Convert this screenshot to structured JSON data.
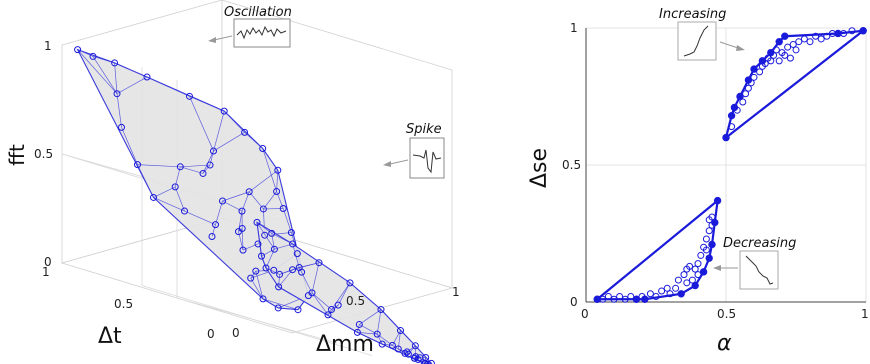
{
  "chart_data": [
    {
      "type": "scatter",
      "projection": "3d",
      "xlabel": "Δt",
      "ylabel": "Δmm",
      "zlabel": "fft",
      "x_ticks": [
        "0",
        "0.5",
        "1"
      ],
      "y_ticks": [
        "0",
        "0.5",
        "1"
      ],
      "z_ticks": [
        "0",
        "0.5",
        "1"
      ],
      "grid": true,
      "colors": {
        "points": "#1a1adb",
        "hull": "#3b3bdd",
        "hull_fill": "#e3e3e3",
        "axes": "#555555",
        "grid": "#d8d8d8"
      },
      "annotations": [
        "Oscillation",
        "Spike"
      ],
      "series": [
        {
          "clusters": "oscillation",
          "points": [
            [
              0.96,
              0.04,
              1.0
            ],
            [
              0.95,
              0.1,
              0.99
            ],
            [
              0.93,
              0.18,
              0.99
            ],
            [
              0.9,
              0.3,
              0.97
            ],
            [
              0.85,
              0.45,
              0.94
            ],
            [
              0.82,
              0.58,
              0.92
            ],
            [
              0.75,
              0.62,
              0.85
            ],
            [
              0.68,
              0.65,
              0.8
            ],
            [
              0.6,
              0.66,
              0.72
            ],
            [
              0.55,
              0.62,
              0.62
            ],
            [
              0.48,
              0.6,
              0.55
            ],
            [
              0.4,
              0.58,
              0.45
            ],
            [
              0.32,
              0.55,
              0.36
            ],
            [
              0.25,
              0.52,
              0.28
            ],
            [
              0.15,
              0.48,
              0.18
            ],
            [
              0.1,
              0.4,
              0.1
            ],
            [
              0.08,
              0.3,
              0.08
            ],
            [
              0.06,
              0.22,
              0.1
            ],
            [
              0.7,
              0.05,
              0.7
            ],
            [
              0.6,
              0.05,
              0.55
            ],
            [
              0.5,
              0.05,
              0.42
            ],
            [
              0.8,
              0.1,
              0.85
            ],
            [
              0.55,
              0.3,
              0.6
            ],
            [
              0.5,
              0.35,
              0.5
            ],
            [
              0.45,
              0.4,
              0.48
            ],
            [
              0.42,
              0.38,
              0.4
            ],
            [
              0.4,
              0.35,
              0.38
            ],
            [
              0.35,
              0.4,
              0.35
            ],
            [
              0.38,
              0.45,
              0.4
            ],
            [
              0.3,
              0.3,
              0.3
            ],
            [
              0.62,
              0.25,
              0.6
            ],
            [
              0.58,
              0.2,
              0.5
            ],
            [
              0.65,
              0.4,
              0.65
            ],
            [
              0.7,
              0.45,
              0.72
            ],
            [
              0.28,
              0.42,
              0.25
            ],
            [
              0.22,
              0.3,
              0.22
            ],
            [
              0.18,
              0.25,
              0.18
            ],
            [
              0.35,
              0.2,
              0.32
            ],
            [
              0.45,
              0.15,
              0.4
            ],
            [
              0.52,
              0.48,
              0.58
            ],
            [
              0.46,
              0.5,
              0.52
            ],
            [
              0.4,
              0.25,
              0.38
            ]
          ]
        },
        {
          "clusters": "spike",
          "points": [
            [
              0.5,
              0.5,
              0.45
            ],
            [
              0.48,
              0.55,
              0.42
            ],
            [
              0.45,
              0.62,
              0.4
            ],
            [
              0.4,
              0.7,
              0.35
            ],
            [
              0.35,
              0.8,
              0.3
            ],
            [
              0.3,
              0.9,
              0.22
            ],
            [
              0.25,
              0.95,
              0.15
            ],
            [
              0.2,
              0.98,
              0.1
            ],
            [
              0.15,
              0.99,
              0.06
            ],
            [
              0.1,
              0.98,
              0.04
            ],
            [
              0.08,
              0.95,
              0.03
            ],
            [
              0.3,
              0.4,
              0.25
            ],
            [
              0.25,
              0.42,
              0.18
            ],
            [
              0.4,
              0.45,
              0.3
            ],
            [
              0.35,
              0.55,
              0.28
            ],
            [
              0.3,
              0.6,
              0.2
            ],
            [
              0.28,
              0.7,
              0.18
            ],
            [
              0.22,
              0.75,
              0.12
            ],
            [
              0.18,
              0.8,
              0.1
            ],
            [
              0.12,
              0.85,
              0.06
            ],
            [
              0.15,
              0.9,
              0.05
            ],
            [
              0.12,
              0.92,
              0.04
            ],
            [
              0.1,
              0.93,
              0.05
            ],
            [
              0.14,
              0.95,
              0.04
            ],
            [
              0.18,
              0.93,
              0.06
            ],
            [
              0.2,
              0.88,
              0.07
            ],
            [
              0.25,
              0.65,
              0.15
            ],
            [
              0.38,
              0.6,
              0.3
            ],
            [
              0.33,
              0.48,
              0.24
            ],
            [
              0.42,
              0.52,
              0.35
            ],
            [
              0.2,
              0.6,
              0.12
            ],
            [
              0.16,
              0.7,
              0.08
            ],
            [
              0.12,
              0.78,
              0.06
            ],
            [
              0.1,
              0.88,
              0.05
            ],
            [
              0.09,
              0.9,
              0.04
            ],
            [
              0.11,
              0.96,
              0.03
            ],
            [
              0.13,
              0.97,
              0.03
            ],
            [
              0.17,
              0.96,
              0.05
            ]
          ]
        }
      ]
    },
    {
      "type": "scatter",
      "xlabel": "α",
      "ylabel": "Δse",
      "xlim": [
        0,
        1
      ],
      "ylim": [
        0,
        1
      ],
      "x_ticks": [
        "0",
        "0.5",
        "1"
      ],
      "y_ticks": [
        "0",
        "0.5",
        "1"
      ],
      "grid": true,
      "annotations": [
        "Increasing",
        "Decreasing"
      ],
      "series": [
        {
          "clusters": "increasing",
          "hull": [
            [
              0.5,
              0.6
            ],
            [
              0.52,
              0.68
            ],
            [
              0.53,
              0.71
            ],
            [
              0.55,
              0.75
            ],
            [
              0.58,
              0.81
            ],
            [
              0.6,
              0.85
            ],
            [
              0.63,
              0.88
            ],
            [
              0.66,
              0.91
            ],
            [
              0.69,
              0.95
            ],
            [
              0.71,
              0.97
            ],
            [
              0.9,
              0.98
            ],
            [
              0.99,
              0.99
            ]
          ],
          "points": [
            [
              0.52,
              0.64
            ],
            [
              0.54,
              0.7
            ],
            [
              0.56,
              0.73
            ],
            [
              0.57,
              0.76
            ],
            [
              0.58,
              0.78
            ],
            [
              0.59,
              0.8
            ],
            [
              0.6,
              0.82
            ],
            [
              0.62,
              0.84
            ],
            [
              0.64,
              0.87
            ],
            [
              0.66,
              0.88
            ],
            [
              0.67,
              0.9
            ],
            [
              0.68,
              0.92
            ],
            [
              0.7,
              0.91
            ],
            [
              0.72,
              0.93
            ],
            [
              0.74,
              0.94
            ],
            [
              0.75,
              0.92
            ],
            [
              0.76,
              0.95
            ],
            [
              0.78,
              0.96
            ],
            [
              0.8,
              0.95
            ],
            [
              0.82,
              0.97
            ],
            [
              0.84,
              0.96
            ],
            [
              0.86,
              0.97
            ],
            [
              0.88,
              0.98
            ],
            [
              0.92,
              0.98
            ],
            [
              0.95,
              0.99
            ],
            [
              0.65,
              0.89
            ],
            [
              0.63,
              0.86
            ],
            [
              0.71,
              0.9
            ],
            [
              0.73,
              0.89
            ],
            [
              0.69,
              0.88
            ]
          ]
        },
        {
          "clusters": "decreasing",
          "hull": [
            [
              0.04,
              0.01
            ],
            [
              0.18,
              0.01
            ],
            [
              0.21,
              0.01
            ],
            [
              0.34,
              0.03
            ],
            [
              0.39,
              0.06
            ],
            [
              0.42,
              0.11
            ],
            [
              0.44,
              0.16
            ],
            [
              0.45,
              0.21
            ],
            [
              0.46,
              0.29
            ],
            [
              0.47,
              0.37
            ]
          ],
          "points": [
            [
              0.06,
              0.01
            ],
            [
              0.08,
              0.02
            ],
            [
              0.1,
              0.01
            ],
            [
              0.12,
              0.02
            ],
            [
              0.14,
              0.01
            ],
            [
              0.16,
              0.02
            ],
            [
              0.2,
              0.02
            ],
            [
              0.23,
              0.03
            ],
            [
              0.25,
              0.02
            ],
            [
              0.27,
              0.04
            ],
            [
              0.29,
              0.05
            ],
            [
              0.3,
              0.03
            ],
            [
              0.32,
              0.05
            ],
            [
              0.33,
              0.08
            ],
            [
              0.35,
              0.1
            ],
            [
              0.36,
              0.12
            ],
            [
              0.37,
              0.13
            ],
            [
              0.38,
              0.08
            ],
            [
              0.39,
              0.12
            ],
            [
              0.4,
              0.14
            ],
            [
              0.41,
              0.17
            ],
            [
              0.42,
              0.2
            ],
            [
              0.43,
              0.23
            ],
            [
              0.44,
              0.26
            ],
            [
              0.45,
              0.28
            ],
            [
              0.45,
              0.31
            ],
            [
              0.44,
              0.3
            ],
            [
              0.43,
              0.19
            ],
            [
              0.4,
              0.1
            ],
            [
              0.36,
              0.07
            ]
          ]
        }
      ]
    }
  ]
}
